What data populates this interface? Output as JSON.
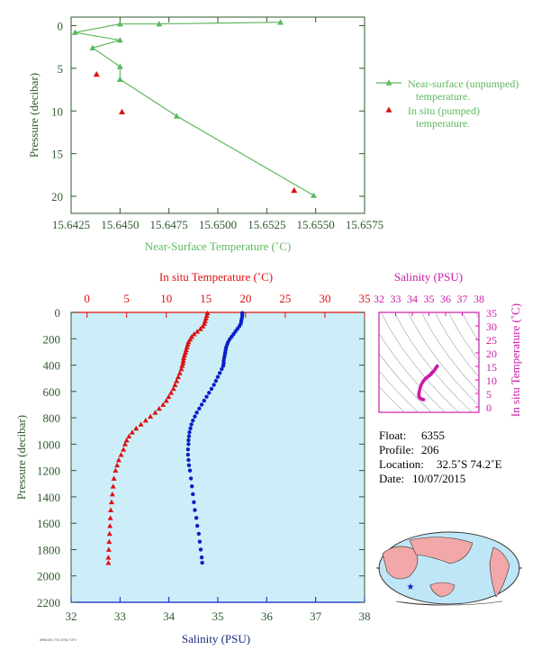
{
  "colors": {
    "green": "#5fb85f",
    "dark_green": "#2e5a2e",
    "red": "#dd1111",
    "blue": "#0a1ec8",
    "magenta": "#cc1aa6",
    "navy": "#1a2a80",
    "plot_bg": "#cdeef8"
  },
  "chart_data": [
    {
      "type": "line",
      "xlabel": "Near-Surface Temperature (˚C)",
      "ylabel": "Pressure (decibar)",
      "xlim": [
        15.6425,
        15.6575
      ],
      "ylim": [
        22,
        -1
      ],
      "xticks": [
        "15.6425",
        "15.6450",
        "15.6475",
        "15.6500",
        "15.6525",
        "15.6550",
        "15.6575"
      ],
      "yticks": [
        "0",
        "5",
        "10",
        "15",
        "20"
      ],
      "legend_position": "right",
      "series": [
        {
          "name": "Near-surface (unpumped) temperature.",
          "x": [
            15.6532,
            15.647,
            15.645,
            15.6427,
            15.645,
            15.6436,
            15.645,
            15.645,
            15.6479,
            15.6549
          ],
          "y": [
            -0.4,
            -0.2,
            -0.2,
            0.8,
            1.7,
            2.6,
            4.8,
            6.3,
            10.6,
            19.9
          ]
        },
        {
          "name": "In situ (pumped) temperature.",
          "x": [
            15.6438,
            15.6451,
            15.6539
          ],
          "y": [
            5.7,
            10.1,
            19.3
          ]
        }
      ]
    },
    {
      "type": "scatter",
      "title": "In situ Temperature (˚C)",
      "xlabel": "Salinity (PSU)",
      "ylabel": "Pressure (decibar)",
      "temp_ticks": [
        "0",
        "5",
        "10",
        "15",
        "20",
        "25",
        "30",
        "35"
      ],
      "sal_ticks": [
        "32",
        "33",
        "34",
        "35",
        "36",
        "37",
        "38"
      ],
      "pres_ticks": [
        "0",
        "200",
        "400",
        "600",
        "800",
        "1000",
        "1200",
        "1400",
        "1600",
        "1800",
        "2000",
        "2200"
      ],
      "temp_lim": [
        -2,
        35
      ],
      "sal_lim": [
        32,
        38
      ],
      "pres_lim": [
        0,
        2200
      ],
      "series": [
        {
          "name": "In situ Temperature (˚C)",
          "pressure": [
            5,
            25,
            45,
            65,
            85,
            105,
            125,
            145,
            165,
            185,
            205,
            225,
            245,
            265,
            285,
            305,
            325,
            345,
            365,
            385,
            405,
            430,
            460,
            490,
            520,
            550,
            580,
            610,
            640,
            670,
            700,
            730,
            760,
            790,
            820,
            850,
            880,
            910,
            940,
            970,
            1000,
            1040,
            1080,
            1120,
            1160,
            1200,
            1260,
            1320,
            1380,
            1440,
            1500,
            1560,
            1620,
            1680,
            1740,
            1800,
            1860,
            1900
          ],
          "temperature": [
            15.2,
            15.1,
            15.0,
            14.9,
            14.8,
            14.6,
            14.3,
            13.9,
            13.5,
            13.2,
            13.0,
            12.8,
            12.7,
            12.6,
            12.5,
            12.4,
            12.3,
            12.2,
            12.15,
            12.1,
            12.0,
            11.9,
            11.7,
            11.5,
            11.3,
            11.1,
            10.9,
            10.6,
            10.3,
            10.0,
            9.6,
            9.1,
            8.6,
            8.0,
            7.4,
            6.8,
            6.2,
            5.7,
            5.3,
            5.0,
            4.8,
            4.6,
            4.3,
            4.0,
            3.8,
            3.6,
            3.4,
            3.3,
            3.2,
            3.1,
            3.0,
            2.95,
            2.9,
            2.85,
            2.8,
            2.75,
            2.7,
            2.7
          ]
        },
        {
          "name": "Salinity (PSU)",
          "pressure": [
            5,
            25,
            45,
            65,
            85,
            105,
            125,
            145,
            165,
            185,
            205,
            225,
            245,
            265,
            285,
            305,
            325,
            345,
            365,
            385,
            405,
            430,
            460,
            490,
            520,
            550,
            580,
            610,
            640,
            670,
            700,
            730,
            760,
            790,
            820,
            850,
            880,
            910,
            940,
            970,
            1000,
            1040,
            1080,
            1120,
            1160,
            1200,
            1260,
            1320,
            1380,
            1440,
            1500,
            1560,
            1620,
            1680,
            1740,
            1800,
            1860,
            1900
          ],
          "salinity": [
            35.5,
            35.5,
            35.49,
            35.48,
            35.47,
            35.44,
            35.4,
            35.36,
            35.32,
            35.28,
            35.24,
            35.21,
            35.19,
            35.17,
            35.16,
            35.15,
            35.14,
            35.13,
            35.12,
            35.12,
            35.11,
            35.08,
            35.04,
            35.0,
            34.96,
            34.92,
            34.87,
            34.82,
            34.77,
            34.72,
            34.67,
            34.62,
            34.57,
            34.53,
            34.49,
            34.46,
            34.44,
            34.42,
            34.41,
            34.4,
            34.4,
            34.39,
            34.39,
            34.4,
            34.41,
            34.43,
            34.45,
            34.47,
            34.49,
            34.51,
            34.53,
            34.56,
            34.58,
            34.61,
            34.63,
            34.65,
            34.67,
            34.68
          ]
        }
      ]
    },
    {
      "type": "scatter",
      "title": "Salinity (PSU)",
      "ylabel": "In situ Temperature (˚C)",
      "sal_ticks": [
        "32",
        "33",
        "34",
        "35",
        "36",
        "37",
        "38"
      ],
      "temp_ticks": [
        "0",
        "5",
        "10",
        "15",
        "20",
        "25",
        "30",
        "35"
      ],
      "sal_lim": [
        32,
        38
      ],
      "temp_lim": [
        -2,
        35
      ],
      "grid": "density contours"
    }
  ],
  "float_info": {
    "float_label": "Float:",
    "float_value": "6355",
    "profile_label": "Profile:",
    "profile_value": "206",
    "location_label": "Location:",
    "location_value": "32.5˚S  74.2˚E",
    "date_label": "Date:",
    "date_value": "10/07/2015"
  },
  "footer_code": "AM6355/TA/206/CFV"
}
